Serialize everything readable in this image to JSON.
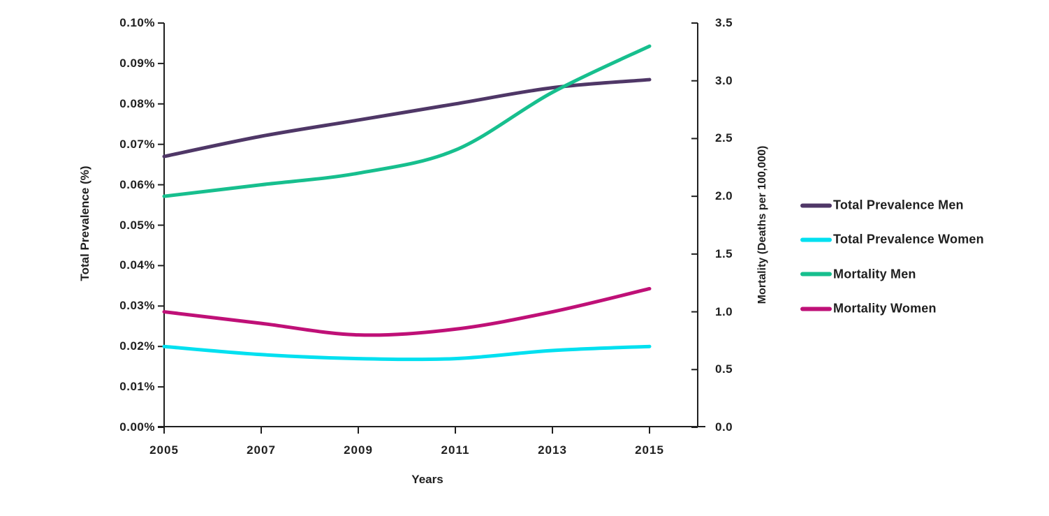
{
  "chart_data": {
    "type": "line",
    "title": "",
    "xlabel": "Years",
    "x": [
      2005,
      2007,
      2009,
      2011,
      2013,
      2015
    ],
    "x_range": [
      2005,
      2016
    ],
    "left_axis": {
      "label": "Total Prevalence (%)",
      "min": 0,
      "max": 0.1,
      "step": 0.01,
      "tick_labels": [
        "0.00%",
        "0.01%",
        "0.02%",
        "0.03%",
        "0.04%",
        "0.05%",
        "0.06%",
        "0.07%",
        "0.08%",
        "0.09%",
        "0.10%"
      ]
    },
    "right_axis": {
      "label": "Mortality (Deaths per 100,000)",
      "min": 0,
      "max": 3.5,
      "step": 0.5,
      "tick_labels": [
        "0.0",
        "0.5",
        "1.0",
        "1.5",
        "2.0",
        "2.5",
        "3.0",
        "3.5"
      ]
    },
    "series": [
      {
        "name": "Total Prevalence Men",
        "axis": "left",
        "color": "#4F3767",
        "values": [
          0.067,
          0.072,
          0.076,
          0.08,
          0.084,
          0.086
        ]
      },
      {
        "name": "Total Prevalence Women",
        "axis": "left",
        "color": "#00E0F0",
        "values": [
          0.02,
          0.018,
          0.017,
          0.017,
          0.019,
          0.02
        ]
      },
      {
        "name": "Mortality Men",
        "axis": "right",
        "color": "#17BF8E",
        "values": [
          2.0,
          2.1,
          2.2,
          2.4,
          2.9,
          3.3
        ]
      },
      {
        "name": "Mortality Women",
        "axis": "right",
        "color": "#BF1077",
        "values": [
          1.0,
          0.9,
          0.8,
          0.85,
          1.0,
          1.2
        ]
      }
    ],
    "legend_position": "right",
    "grid": false,
    "smoothed_lines": true,
    "axis_color": "#1f1f1f"
  }
}
